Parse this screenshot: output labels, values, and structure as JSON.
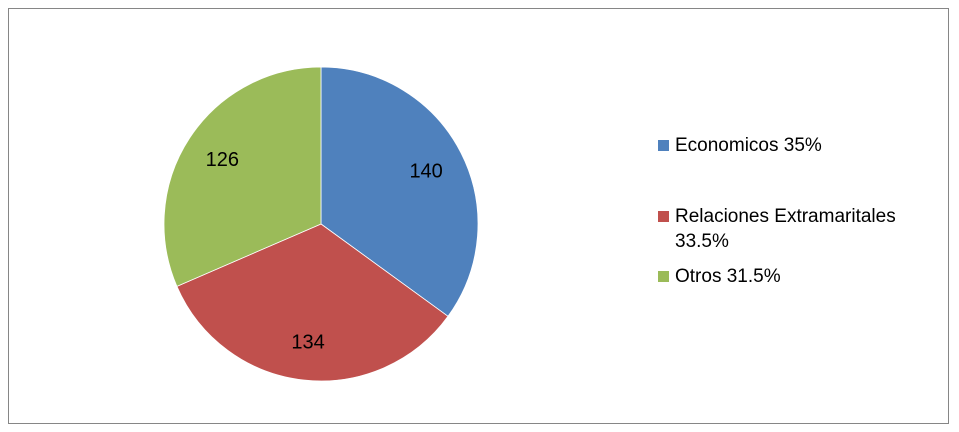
{
  "chart_data": {
    "type": "pie",
    "slices": [
      {
        "label": "Economicos",
        "legend": "Economicos 35%",
        "value": 140,
        "value_label": "140",
        "percent": 35,
        "color": "#4F81BD"
      },
      {
        "label": "Relaciones Extramaritales",
        "legend": "Relaciones Extramaritales 33.5%",
        "value": 134,
        "value_label": "134",
        "percent": 33.5,
        "color": "#C0504D"
      },
      {
        "label": "Otros",
        "legend": "Otros 31.5%",
        "value": 126,
        "value_label": "126",
        "percent": 31.5,
        "color": "#9BBB59"
      }
    ],
    "legend_position": "right",
    "start_angle_deg": 0,
    "direction": "clockwise"
  }
}
